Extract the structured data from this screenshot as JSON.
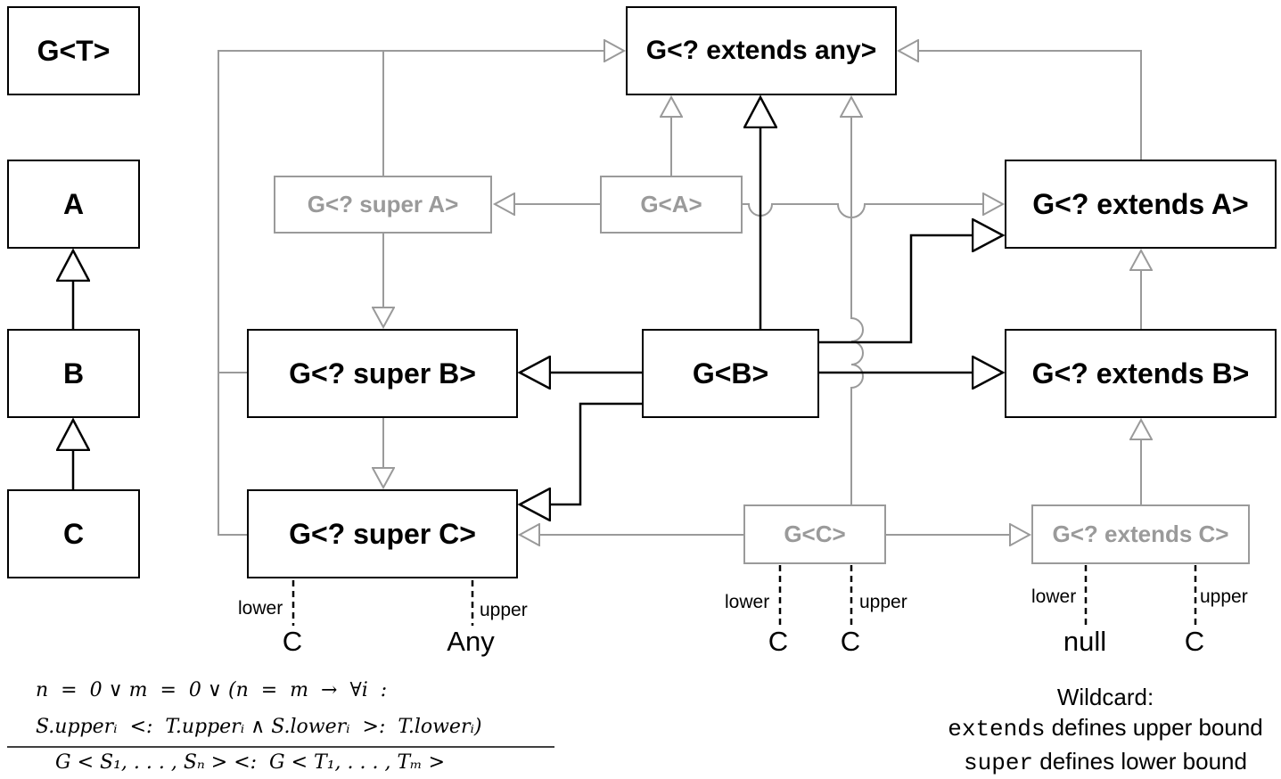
{
  "boxes": {
    "g_t": "G<T>",
    "a": "A",
    "b": "B",
    "c": "C",
    "g_extends_any": "G<? extends any>",
    "g_super_a": "G<? super A>",
    "g_a": "G<A>",
    "g_extends_a": "G<? extends A>",
    "g_super_b": "G<? super B>",
    "g_b": "G<B>",
    "g_extends_b": "G<? extends B>",
    "g_super_c": "G<? super C>",
    "g_c": "G<C>",
    "g_extends_c": "G<? extends C>"
  },
  "bounds": {
    "super_c": {
      "lower_label": "lower",
      "lower_value": "C",
      "upper_label": "upper",
      "upper_value": "Any"
    },
    "g_c": {
      "lower_label": "lower",
      "lower_value": "C",
      "upper_label": "upper",
      "upper_value": "C"
    },
    "extends_c": {
      "lower_label": "lower",
      "lower_value": "null",
      "upper_label": "upper",
      "upper_value": "C"
    }
  },
  "formula": {
    "line1": "n  =  0 ∨ m  =  0 ∨ (n  =  m  →  ∀i  :",
    "line2": "S.upperᵢ  <:  T.upperᵢ ∧ S.lowerᵢ  >:  T.lowerᵢ)",
    "line3": "G < S₁, . . . , Sₙ > <:  G < T₁, . . . , Tₘ >"
  },
  "legend": {
    "title": "Wildcard:",
    "extends_keyword": "extends",
    "extends_text": " defines upper bound",
    "super_keyword": "super",
    "super_text": " defines lower bound"
  }
}
